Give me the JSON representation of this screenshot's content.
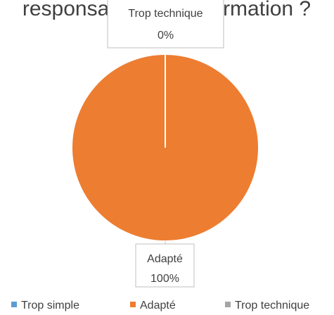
{
  "chart_data": {
    "type": "pie",
    "title": "responsables de la formation ?",
    "categories": [
      "Trop simple",
      "Adapté",
      "Trop technique"
    ],
    "values": [
      0,
      100,
      0
    ],
    "value_labels": [
      null,
      "100%",
      "0%"
    ],
    "colors": [
      "#5b9bd5",
      "#ed7d31",
      "#a5a5a5"
    ],
    "legend": "bottom"
  }
}
